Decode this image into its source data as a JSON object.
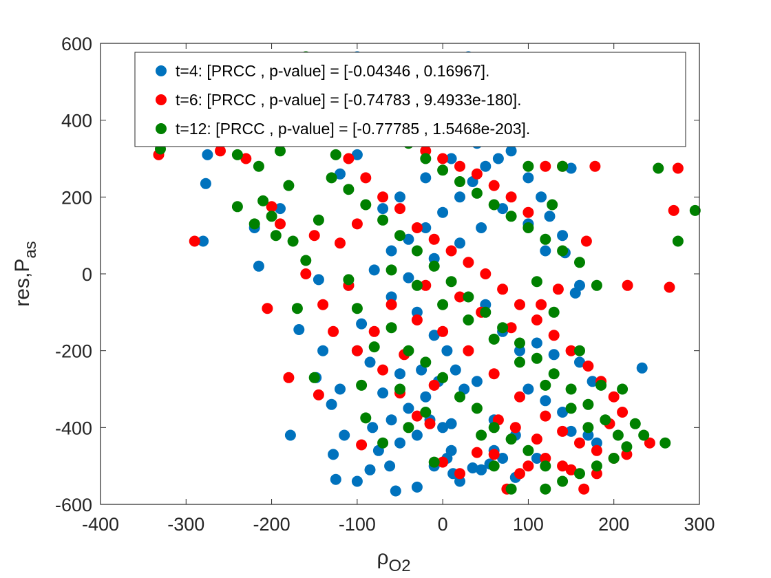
{
  "chart_data": {
    "type": "scatter",
    "title": "",
    "xlabel": "ρ",
    "xlabel_sub": "O2",
    "ylabel": "res,P",
    "ylabel_sub": "as",
    "xlim": [
      -400,
      300
    ],
    "ylim": [
      -600,
      600
    ],
    "xticks": [
      "-400",
      "-300",
      "-200",
      "-100",
      "0",
      "100",
      "200",
      "300"
    ],
    "yticks": [
      "600",
      "400",
      "200",
      "0",
      "-200",
      "-400",
      "-600"
    ],
    "grid": false,
    "legend_position": "top-right",
    "series": [
      {
        "name": "t=4: [PRCC , p-value] = [-0.04346 , 0.16967].",
        "color": "#0072BD",
        "points": [
          [
            -280,
            85
          ],
          [
            -275,
            310
          ],
          [
            -277,
            235
          ],
          [
            -215,
            20
          ],
          [
            -220,
            120
          ],
          [
            -190,
            170
          ],
          [
            -178,
            -420
          ],
          [
            -168,
            -145
          ],
          [
            -148,
            -270
          ],
          [
            -145,
            -15
          ],
          [
            -130,
            -340
          ],
          [
            -128,
            -470
          ],
          [
            -125,
            -535
          ],
          [
            -115,
            -420
          ],
          [
            -100,
            -540
          ],
          [
            -95,
            -130
          ],
          [
            -82,
            -400
          ],
          [
            -75,
            -460
          ],
          [
            -62,
            -500
          ],
          [
            -55,
            -565
          ],
          [
            -60,
            -380
          ],
          [
            -30,
            -555
          ],
          [
            -10,
            -500
          ],
          [
            5,
            -480
          ],
          [
            10,
            -460
          ],
          [
            12,
            -520
          ],
          [
            20,
            -540
          ],
          [
            35,
            -505
          ],
          [
            45,
            -510
          ],
          [
            55,
            -495
          ],
          [
            60,
            -460
          ],
          [
            -100,
            -200
          ],
          [
            -85,
            -230
          ],
          [
            -70,
            -310
          ],
          [
            -50,
            -260
          ],
          [
            -40,
            -350
          ],
          [
            -20,
            -320
          ],
          [
            0,
            -400
          ],
          [
            10,
            -390
          ],
          [
            25,
            -300
          ],
          [
            40,
            -280
          ],
          [
            70,
            -480
          ],
          [
            85,
            -530
          ],
          [
            110,
            -480
          ],
          [
            -60,
            -60
          ],
          [
            -30,
            -100
          ],
          [
            -10,
            -160
          ],
          [
            5,
            -200
          ],
          [
            15,
            -250
          ],
          [
            50,
            -80
          ],
          [
            70,
            -150
          ],
          [
            90,
            -200
          ],
          [
            110,
            -180
          ],
          [
            130,
            -210
          ],
          [
            160,
            -230
          ],
          [
            175,
            -280
          ],
          [
            233,
            -245
          ],
          [
            -110,
            -30
          ],
          [
            -80,
            10
          ],
          [
            -60,
            60
          ],
          [
            -40,
            90
          ],
          [
            -20,
            120
          ],
          [
            0,
            160
          ],
          [
            20,
            200
          ],
          [
            35,
            240
          ],
          [
            50,
            280
          ],
          [
            65,
            300
          ],
          [
            80,
            320
          ],
          [
            100,
            250
          ],
          [
            115,
            200
          ],
          [
            125,
            150
          ],
          [
            140,
            100
          ],
          [
            -120,
            260
          ],
          [
            -100,
            310
          ],
          [
            -80,
            350
          ],
          [
            -60,
            390
          ],
          [
            -40,
            430
          ],
          [
            -20,
            480
          ],
          [
            0,
            520
          ],
          [
            30,
            565
          ],
          [
            -100,
            565
          ],
          [
            -150,
            560
          ],
          [
            -70,
            170
          ],
          [
            -50,
            200
          ],
          [
            -20,
            250
          ],
          [
            10,
            300
          ],
          [
            40,
            340
          ],
          [
            60,
            360
          ],
          [
            90,
            360
          ],
          [
            150,
            275
          ],
          [
            -40,
            -10
          ],
          [
            -10,
            40
          ],
          [
            20,
            80
          ],
          [
            45,
            120
          ],
          [
            70,
            170
          ],
          [
            100,
            130
          ],
          [
            120,
            60
          ],
          [
            143,
            55
          ],
          [
            160,
            -30
          ],
          [
            155,
            -50
          ],
          [
            100,
            -300
          ],
          [
            120,
            -330
          ],
          [
            140,
            -360
          ],
          [
            150,
            -410
          ],
          [
            170,
            -420
          ],
          [
            180,
            -440
          ],
          [
            60,
            -380
          ],
          [
            85,
            -420
          ],
          [
            -85,
            -510
          ],
          [
            -50,
            -440
          ],
          [
            -30,
            -420
          ],
          [
            -15,
            -380
          ],
          [
            -140,
            -200
          ],
          [
            -120,
            -300
          ],
          [
            -25,
            -250
          ],
          [
            -5,
            -280
          ]
        ]
      },
      {
        "name": "t=6: [PRCC , p-value] = [-0.74783 , 9.4933e-180].",
        "color": "#FF0000",
        "points": [
          [
            -332,
            310
          ],
          [
            -290,
            85
          ],
          [
            -205,
            -90
          ],
          [
            -200,
            175
          ],
          [
            -180,
            -270
          ],
          [
            -190,
            130
          ],
          [
            -160,
            0
          ],
          [
            -150,
            100
          ],
          [
            -145,
            -315
          ],
          [
            -128,
            -150
          ],
          [
            -110,
            -30
          ],
          [
            -100,
            -200
          ],
          [
            -95,
            -445
          ],
          [
            -70,
            -250
          ],
          [
            -50,
            -310
          ],
          [
            -30,
            -370
          ],
          [
            -15,
            -390
          ],
          [
            0,
            -490
          ],
          [
            20,
            -520
          ],
          [
            40,
            -465
          ],
          [
            60,
            -470
          ],
          [
            75,
            -560
          ],
          [
            90,
            -520
          ],
          [
            100,
            -500
          ],
          [
            120,
            -480
          ],
          [
            140,
            -500
          ],
          [
            150,
            -510
          ],
          [
            165,
            -560
          ],
          [
            180,
            -520
          ],
          [
            200,
            -480
          ],
          [
            215,
            -470
          ],
          [
            242,
            -440
          ],
          [
            265,
            -35
          ],
          [
            275,
            275
          ],
          [
            270,
            165
          ],
          [
            -155,
            560
          ],
          [
            -165,
            560
          ],
          [
            -125,
            560
          ],
          [
            -100,
            500
          ],
          [
            -80,
            450
          ],
          [
            -60,
            400
          ],
          [
            -40,
            360
          ],
          [
            -20,
            320
          ],
          [
            0,
            300
          ],
          [
            20,
            280
          ],
          [
            40,
            260
          ],
          [
            60,
            230
          ],
          [
            80,
            200
          ],
          [
            100,
            160
          ],
          [
            120,
            280
          ],
          [
            140,
            280
          ],
          [
            178,
            280
          ],
          [
            168,
            85
          ],
          [
            -110,
            300
          ],
          [
            -90,
            250
          ],
          [
            -70,
            200
          ],
          [
            -50,
            170
          ],
          [
            -30,
            120
          ],
          [
            -10,
            90
          ],
          [
            10,
            60
          ],
          [
            30,
            30
          ],
          [
            50,
            0
          ],
          [
            70,
            -40
          ],
          [
            90,
            -80
          ],
          [
            110,
            -120
          ],
          [
            130,
            -160
          ],
          [
            150,
            -200
          ],
          [
            170,
            -240
          ],
          [
            185,
            -280
          ],
          [
            200,
            -320
          ],
          [
            210,
            -360
          ],
          [
            -60,
            -80
          ],
          [
            -30,
            -120
          ],
          [
            0,
            -150
          ],
          [
            30,
            -200
          ],
          [
            60,
            -260
          ],
          [
            90,
            -320
          ],
          [
            120,
            -370
          ],
          [
            140,
            -410
          ],
          [
            160,
            -440
          ],
          [
            180,
            -460
          ],
          [
            -260,
            320
          ],
          [
            -230,
            300
          ],
          [
            -140,
            -80
          ],
          [
            -20,
            -30
          ],
          [
            20,
            -60
          ],
          [
            45,
            -100
          ],
          [
            80,
            -140
          ],
          [
            115,
            -80
          ],
          [
            135,
            -40
          ],
          [
            216,
            -30
          ],
          [
            195,
            -390
          ],
          [
            85,
            -400
          ],
          [
            110,
            -430
          ],
          [
            65,
            -380
          ],
          [
            -10,
            -290
          ],
          [
            -45,
            -210
          ],
          [
            -80,
            -150
          ],
          [
            -120,
            80
          ],
          [
            -100,
            130
          ]
        ]
      },
      {
        "name": "t=12: [PRCC , p-value] = [-0.77785 , 1.5468e-203].",
        "color": "#008000",
        "points": [
          [
            -330,
            325
          ],
          [
            -240,
            175
          ],
          [
            -220,
            130
          ],
          [
            -210,
            190
          ],
          [
            -200,
            150
          ],
          [
            -195,
            100
          ],
          [
            -180,
            230
          ],
          [
            -170,
            -90
          ],
          [
            -175,
            85
          ],
          [
            -160,
            35
          ],
          [
            -150,
            -270
          ],
          [
            -145,
            140
          ],
          [
            -125,
            310
          ],
          [
            -110,
            -15
          ],
          [
            -95,
            -290
          ],
          [
            -90,
            -375
          ],
          [
            -80,
            -190
          ],
          [
            -60,
            -140
          ],
          [
            -40,
            -200
          ],
          [
            -20,
            -230
          ],
          [
            0,
            -270
          ],
          [
            20,
            -320
          ],
          [
            40,
            -350
          ],
          [
            60,
            -400
          ],
          [
            80,
            -430
          ],
          [
            100,
            -460
          ],
          [
            120,
            -500
          ],
          [
            140,
            -540
          ],
          [
            160,
            -520
          ],
          [
            180,
            -500
          ],
          [
            200,
            -480
          ],
          [
            215,
            -450
          ],
          [
            235,
            -420
          ],
          [
            260,
            -440
          ],
          [
            275,
            85
          ],
          [
            295,
            165
          ],
          [
            252,
            275
          ],
          [
            -180,
            560
          ],
          [
            -160,
            565
          ],
          [
            -140,
            520
          ],
          [
            -120,
            490
          ],
          [
            -100,
            450
          ],
          [
            -80,
            410
          ],
          [
            -60,
            380
          ],
          [
            -40,
            340
          ],
          [
            -20,
            300
          ],
          [
            0,
            270
          ],
          [
            20,
            240
          ],
          [
            40,
            210
          ],
          [
            60,
            180
          ],
          [
            80,
            150
          ],
          [
            100,
            120
          ],
          [
            120,
            90
          ],
          [
            140,
            60
          ],
          [
            160,
            30
          ],
          [
            180,
            -30
          ],
          [
            -130,
            250
          ],
          [
            -110,
            220
          ],
          [
            -90,
            180
          ],
          [
            -70,
            140
          ],
          [
            -50,
            100
          ],
          [
            -30,
            60
          ],
          [
            -10,
            20
          ],
          [
            10,
            -20
          ],
          [
            30,
            -60
          ],
          [
            50,
            -100
          ],
          [
            70,
            -140
          ],
          [
            90,
            -180
          ],
          [
            110,
            -220
          ],
          [
            130,
            -260
          ],
          [
            150,
            -300
          ],
          [
            170,
            -340
          ],
          [
            190,
            -380
          ],
          [
            205,
            -420
          ],
          [
            -60,
            10
          ],
          [
            -30,
            -30
          ],
          [
            0,
            -80
          ],
          [
            30,
            -120
          ],
          [
            60,
            -170
          ],
          [
            90,
            -230
          ],
          [
            120,
            -290
          ],
          [
            150,
            -350
          ],
          [
            170,
            -400
          ],
          [
            100,
            280
          ],
          [
            140,
            280
          ],
          [
            128,
            180
          ],
          [
            -240,
            310
          ],
          [
            -215,
            280
          ],
          [
            -190,
            320
          ],
          [
            110,
            -20
          ],
          [
            130,
            -100
          ],
          [
            160,
            -200
          ],
          [
            185,
            -290
          ],
          [
            210,
            -300
          ],
          [
            225,
            -390
          ],
          [
            120,
            -560
          ],
          [
            80,
            -560
          ],
          [
            60,
            -500
          ],
          [
            -10,
            -490
          ],
          [
            45,
            -420
          ],
          [
            -70,
            -440
          ],
          [
            -40,
            -400
          ],
          [
            -20,
            -360
          ],
          [
            -50,
            -300
          ],
          [
            -100,
            -90
          ]
        ]
      }
    ]
  }
}
